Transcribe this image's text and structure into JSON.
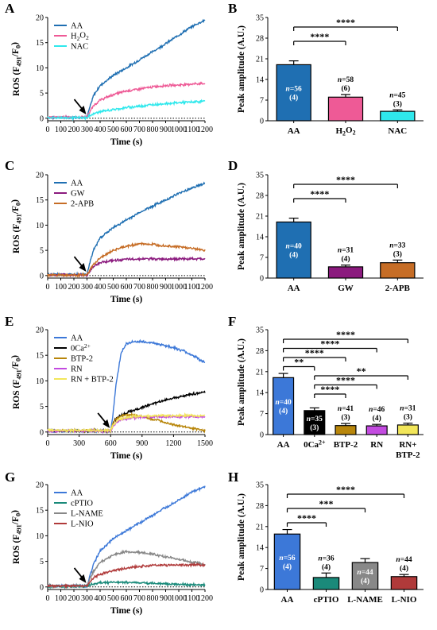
{
  "figure": {
    "panels": [
      {
        "letter": "A"
      },
      {
        "letter": "B"
      },
      {
        "letter": "C"
      },
      {
        "letter": "D"
      },
      {
        "letter": "E"
      },
      {
        "letter": "F"
      },
      {
        "letter": "G"
      },
      {
        "letter": "H"
      }
    ]
  },
  "chart_data": [
    {
      "panel": "A",
      "type": "line",
      "xlabel": "Time (s)",
      "ylabel": "ROS (F491/F0)",
      "xlim": [
        0,
        1200
      ],
      "ylim": [
        -0.5,
        20
      ],
      "xticks": [
        0,
        100,
        200,
        300,
        400,
        500,
        600,
        700,
        800,
        900,
        1000,
        1100,
        1200
      ],
      "yticks": [
        0,
        5,
        10,
        15,
        20
      ],
      "legend_position": "top-left",
      "stimulus_arrow_x": 300,
      "baseline": "dotted line at y = 0",
      "series": [
        {
          "name": "AA",
          "color": "#1f6fb2",
          "x": [
            0,
            300,
            320,
            350,
            400,
            500,
            600,
            700,
            800,
            900,
            1000,
            1100,
            1200
          ],
          "y": [
            0.2,
            0.2,
            2.0,
            4.5,
            6.5,
            8.5,
            10.0,
            11.6,
            13.2,
            14.8,
            16.5,
            18.2,
            19.5
          ]
        },
        {
          "name": "H2O2",
          "color": "#ee5a96",
          "x": [
            0,
            300,
            320,
            350,
            400,
            500,
            600,
            700,
            800,
            900,
            1000,
            1100,
            1200
          ],
          "y": [
            0.2,
            0.2,
            1.2,
            2.5,
            3.6,
            4.7,
            5.4,
            5.8,
            6.2,
            6.5,
            6.6,
            6.8,
            6.9
          ]
        },
        {
          "name": "NAC",
          "color": "#2fe8ec",
          "x": [
            0,
            300,
            320,
            350,
            400,
            500,
            600,
            700,
            800,
            900,
            1000,
            1100,
            1200
          ],
          "y": [
            0.1,
            0.1,
            0.5,
            0.9,
            1.3,
            1.7,
            2.1,
            2.4,
            2.7,
            2.9,
            3.1,
            3.2,
            3.4
          ]
        }
      ]
    },
    {
      "panel": "B",
      "type": "bar",
      "ylabel": "Peak amplitude (A.U.)",
      "ylim": [
        0,
        35
      ],
      "yticks": [
        0,
        7,
        14,
        21,
        28,
        35
      ],
      "categories": [
        "AA",
        "H2O2",
        "NAC"
      ],
      "values": [
        19.0,
        8.0,
        3.2
      ],
      "errors": [
        1.3,
        0.9,
        0.5
      ],
      "colors": [
        "#1f6fb2",
        "#ee5a96",
        "#2fe8ec"
      ],
      "n_labels": [
        [
          "n=56",
          "(4)"
        ],
        [
          "n=58",
          "(6)"
        ],
        [
          "n=45",
          "(3)"
        ]
      ],
      "significance": [
        {
          "from": "AA",
          "to": "H2O2",
          "label": "****"
        },
        {
          "from": "AA",
          "to": "NAC",
          "label": "****"
        }
      ]
    },
    {
      "panel": "C",
      "type": "line",
      "xlabel": "Time (s)",
      "ylabel": "ROS (F491/F0)",
      "xlim": [
        0,
        1200
      ],
      "ylim": [
        -0.5,
        20
      ],
      "xticks": [
        0,
        100,
        200,
        300,
        400,
        500,
        600,
        700,
        800,
        900,
        1000,
        1100,
        1200
      ],
      "yticks": [
        0,
        5,
        10,
        15,
        20
      ],
      "legend_position": "top-left",
      "stimulus_arrow_x": 300,
      "baseline": "dotted line at y = 0",
      "series": [
        {
          "name": "AA",
          "color": "#1f6fb2",
          "x": [
            0,
            300,
            320,
            350,
            400,
            500,
            600,
            700,
            800,
            900,
            1000,
            1100,
            1200
          ],
          "y": [
            0.2,
            0.2,
            2.5,
            5.0,
            7.5,
            9.5,
            11.0,
            12.5,
            13.8,
            15.0,
            16.3,
            17.4,
            18.3
          ]
        },
        {
          "name": "GW",
          "color": "#8b1a7e",
          "x": [
            0,
            300,
            320,
            350,
            400,
            500,
            600,
            700,
            800,
            900,
            1000,
            1100,
            1200
          ],
          "y": [
            0.1,
            0.1,
            0.8,
            1.8,
            2.6,
            3.0,
            3.2,
            3.3,
            3.3,
            3.3,
            3.3,
            3.3,
            3.3
          ]
        },
        {
          "name": "2-APB",
          "color": "#c66d26",
          "x": [
            0,
            300,
            320,
            350,
            400,
            500,
            600,
            700,
            800,
            900,
            1000,
            1100,
            1200
          ],
          "y": [
            0.1,
            0.1,
            1.0,
            2.2,
            3.5,
            5.0,
            5.8,
            6.3,
            6.2,
            5.9,
            5.7,
            5.4,
            5.0
          ]
        }
      ]
    },
    {
      "panel": "D",
      "type": "bar",
      "ylabel": "Peak amplitude (A.U.)",
      "ylim": [
        0,
        35
      ],
      "yticks": [
        0,
        7,
        14,
        21,
        28,
        35
      ],
      "categories": [
        "AA",
        "GW",
        "2-APB"
      ],
      "values": [
        19.0,
        3.8,
        5.2
      ],
      "errors": [
        1.3,
        0.6,
        0.9
      ],
      "colors": [
        "#1f6fb2",
        "#8b1a7e",
        "#c66d26"
      ],
      "n_labels": [
        [
          "n=40",
          "(4)"
        ],
        [
          "n=31",
          "(4)"
        ],
        [
          "n=33",
          "(3)"
        ]
      ],
      "significance": [
        {
          "from": "AA",
          "to": "GW",
          "label": "****"
        },
        {
          "from": "AA",
          "to": "2-APB",
          "label": "****"
        }
      ]
    },
    {
      "panel": "E",
      "type": "line",
      "xlabel": "Time (s)",
      "ylabel": "ROS (F491/F0)",
      "xlim": [
        0,
        1500
      ],
      "ylim": [
        -0.5,
        20
      ],
      "xticks": [
        0,
        300,
        600,
        900,
        1200,
        1500
      ],
      "yticks": [
        0,
        5,
        10,
        15,
        20
      ],
      "legend_position": "top-left",
      "stimulus_arrow_x": 600,
      "baseline": "dotted line at y = 0",
      "series": [
        {
          "name": "AA",
          "color": "#3c78d8",
          "x": [
            0,
            600,
            620,
            650,
            700,
            750,
            800,
            900,
            1000,
            1100,
            1200,
            1300,
            1400,
            1500
          ],
          "y": [
            0.2,
            0.2,
            3.0,
            9.0,
            15.5,
            17.2,
            17.6,
            17.7,
            17.4,
            17.0,
            16.5,
            15.8,
            14.8,
            13.5
          ]
        },
        {
          "name": "0Ca2+",
          "color": "#000000",
          "x": [
            0,
            600,
            620,
            650,
            700,
            800,
            900,
            1000,
            1100,
            1200,
            1300,
            1400,
            1500
          ],
          "y": [
            0.2,
            0.2,
            1.5,
            2.6,
            3.3,
            4.1,
            4.8,
            5.5,
            6.1,
            6.7,
            7.1,
            7.5,
            7.8
          ]
        },
        {
          "name": "BTP-2",
          "color": "#b8860b",
          "x": [
            0,
            600,
            620,
            650,
            700,
            800,
            900,
            1000,
            1100,
            1200,
            1300,
            1400,
            1500
          ],
          "y": [
            0.3,
            0.3,
            1.5,
            2.5,
            3.2,
            3.4,
            3.0,
            2.5,
            2.0,
            1.5,
            1.0,
            0.6,
            0.3
          ]
        },
        {
          "name": "RN",
          "color": "#c34be0",
          "x": [
            0,
            600,
            620,
            650,
            700,
            800,
            900,
            1000,
            1100,
            1200,
            1300,
            1400,
            1500
          ],
          "y": [
            0.2,
            0.2,
            1.0,
            1.8,
            2.4,
            2.8,
            2.9,
            3.0,
            3.0,
            3.0,
            3.0,
            3.0,
            3.0
          ]
        },
        {
          "name": "RN + BTP-2",
          "color": "#f2e65a",
          "x": [
            0,
            600,
            620,
            650,
            700,
            800,
            900,
            1000,
            1100,
            1200,
            1300,
            1400,
            1500
          ],
          "y": [
            0.3,
            0.3,
            1.2,
            2.0,
            2.6,
            3.0,
            3.1,
            3.1,
            3.2,
            3.2,
            3.2,
            3.2,
            3.2
          ]
        }
      ]
    },
    {
      "panel": "F",
      "type": "bar",
      "ylabel": "Peak amplitude (A.U.)",
      "ylim": [
        0,
        35
      ],
      "yticks": [
        0,
        7,
        14,
        21,
        28,
        35
      ],
      "categories": [
        "AA",
        "0Ca2+",
        "BTP-2",
        "RN",
        "RN+ BTP-2"
      ],
      "values": [
        19.0,
        8.0,
        3.0,
        2.9,
        3.2
      ],
      "errors": [
        1.4,
        0.9,
        0.7,
        0.5,
        0.6
      ],
      "colors": [
        "#3c78d8",
        "#000000",
        "#b8860b",
        "#c34be0",
        "#f2e65a"
      ],
      "n_labels": [
        [
          "n=40",
          "(4)"
        ],
        [
          "n=35",
          "(3)"
        ],
        [
          "n=41",
          "(3)"
        ],
        [
          "n=46",
          "(4)"
        ],
        [
          "n=31",
          "(3)"
        ]
      ],
      "significance": [
        {
          "from": "AA",
          "to": "0Ca2+",
          "label": "**"
        },
        {
          "from": "AA",
          "to": "BTP-2",
          "label": "****"
        },
        {
          "from": "AA",
          "to": "RN",
          "label": "****"
        },
        {
          "from": "AA",
          "to": "RN+ BTP-2",
          "label": "****"
        },
        {
          "from": "0Ca2+",
          "to": "BTP-2",
          "label": "****"
        },
        {
          "from": "0Ca2+",
          "to": "RN",
          "label": "****"
        },
        {
          "from": "0Ca2+",
          "to": "RN+ BTP-2",
          "label": "**"
        }
      ]
    },
    {
      "panel": "G",
      "type": "line",
      "xlabel": "Time (s)",
      "ylabel": "ROS (F491/F0)",
      "xlim": [
        0,
        1200
      ],
      "ylim": [
        -0.5,
        20
      ],
      "xticks": [
        0,
        100,
        200,
        300,
        400,
        500,
        600,
        700,
        800,
        900,
        1000,
        1100,
        1200
      ],
      "yticks": [
        0,
        5,
        10,
        15,
        20
      ],
      "legend_position": "top-left",
      "stimulus_arrow_x": 300,
      "baseline": "dotted line at y = 0",
      "series": [
        {
          "name": "AA",
          "color": "#3c78d8",
          "x": [
            0,
            300,
            320,
            350,
            400,
            500,
            600,
            700,
            800,
            900,
            1000,
            1100,
            1200
          ],
          "y": [
            0.2,
            0.2,
            2.0,
            4.5,
            7.0,
            9.5,
            11.0,
            12.5,
            14.0,
            15.5,
            17.0,
            18.5,
            19.6
          ]
        },
        {
          "name": "cPTIO",
          "color": "#1a8a7a",
          "x": [
            0,
            300,
            320,
            350,
            400,
            500,
            600,
            700,
            800,
            900,
            1000,
            1100,
            1200
          ],
          "y": [
            0.1,
            0.1,
            0.4,
            0.6,
            0.8,
            0.9,
            0.9,
            0.8,
            0.7,
            0.6,
            0.5,
            0.4,
            0.4
          ]
        },
        {
          "name": "L-NAME",
          "color": "#888888",
          "x": [
            0,
            300,
            320,
            350,
            400,
            500,
            600,
            700,
            800,
            900,
            1000,
            1100,
            1200
          ],
          "y": [
            0.2,
            0.2,
            1.5,
            3.0,
            4.8,
            6.3,
            6.9,
            6.8,
            6.4,
            5.9,
            5.4,
            4.9,
            4.4
          ]
        },
        {
          "name": "L-NIO",
          "color": "#b03a3a",
          "x": [
            0,
            300,
            320,
            350,
            400,
            500,
            600,
            700,
            800,
            900,
            1000,
            1100,
            1200
          ],
          "y": [
            0.2,
            0.2,
            1.0,
            1.8,
            2.5,
            3.2,
            3.7,
            4.0,
            4.2,
            4.3,
            4.3,
            4.3,
            4.3
          ]
        }
      ]
    },
    {
      "panel": "H",
      "type": "bar",
      "ylabel": "Peak amplitude (A.U.)",
      "ylim": [
        0,
        35
      ],
      "yticks": [
        0,
        7,
        14,
        21,
        28,
        35
      ],
      "categories": [
        "AA",
        "cPTIO",
        "L-NAME",
        "L-NIO"
      ],
      "values": [
        18.5,
        4.0,
        9.0,
        4.3
      ],
      "errors": [
        1.5,
        1.5,
        1.3,
        0.7
      ],
      "colors": [
        "#3c78d8",
        "#1a8a7a",
        "#888888",
        "#b03a3a"
      ],
      "n_labels": [
        [
          "n=56",
          "(4)"
        ],
        [
          "n=36",
          "(4)"
        ],
        [
          "n=44",
          "(4)"
        ],
        [
          "n=44",
          "(4)"
        ]
      ],
      "significance": [
        {
          "from": "AA",
          "to": "cPTIO",
          "label": "****"
        },
        {
          "from": "AA",
          "to": "L-NAME",
          "label": "***"
        },
        {
          "from": "AA",
          "to": "L-NIO",
          "label": "****"
        }
      ]
    }
  ]
}
